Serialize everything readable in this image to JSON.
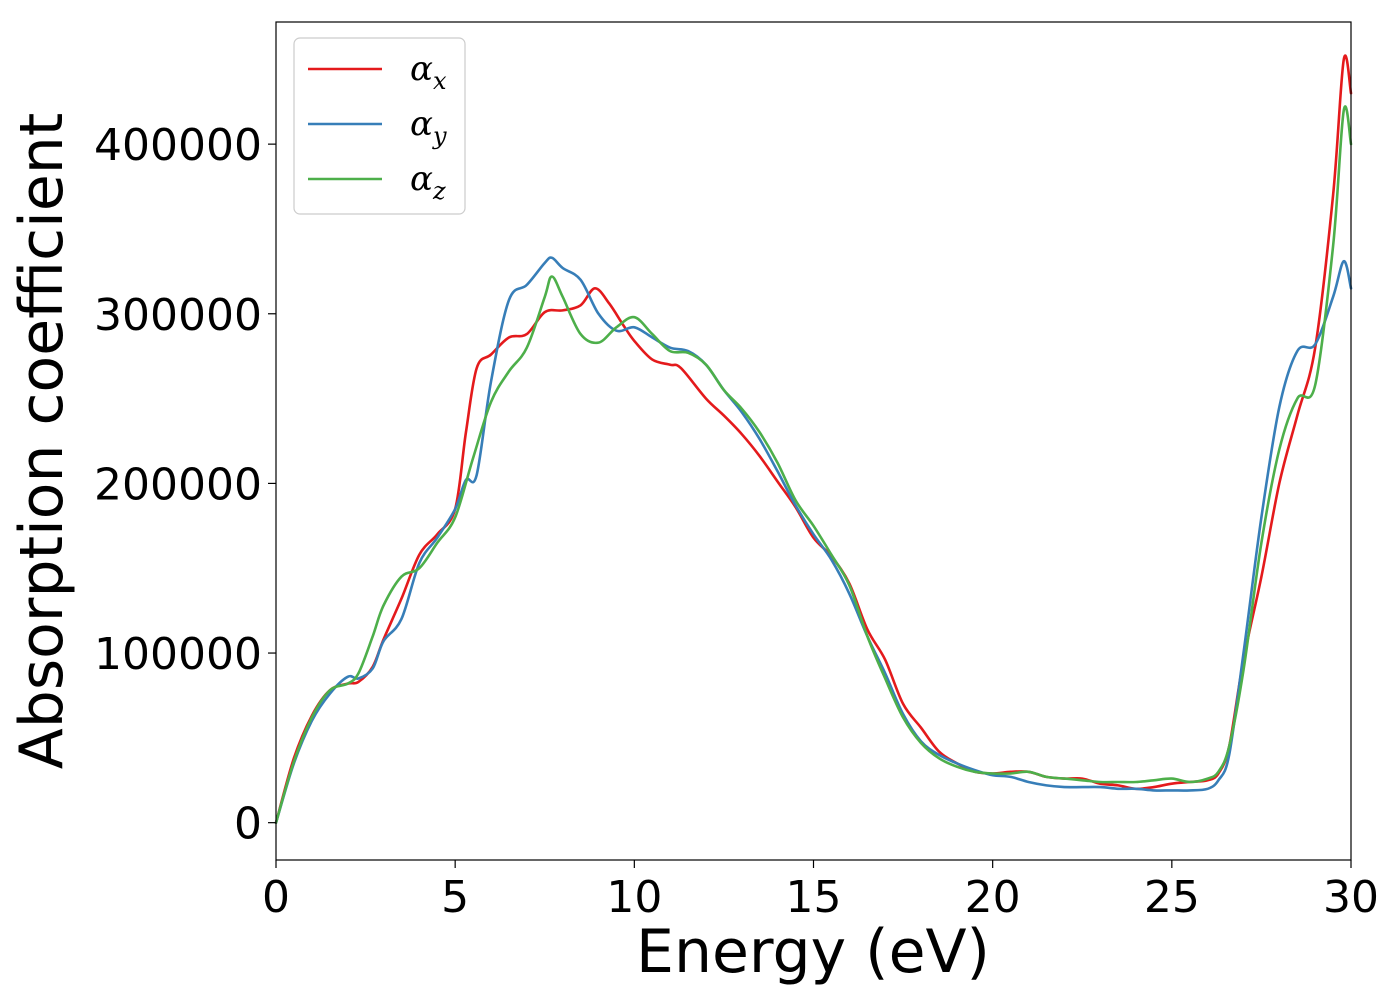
{
  "chart_data": {
    "type": "line",
    "xlabel": "Energy (eV)",
    "ylabel": "Absorption coefficient",
    "xlim": [
      0,
      30
    ],
    "ylim": [
      -22000,
      472000
    ],
    "xticks": [
      0,
      5,
      10,
      15,
      20,
      25,
      30
    ],
    "xtick_labels": [
      "0",
      "5",
      "10",
      "15",
      "20",
      "25",
      "30"
    ],
    "yticks": [
      0,
      100000,
      200000,
      300000,
      400000
    ],
    "ytick_labels": [
      "0",
      "100000",
      "200000",
      "300000",
      "400000"
    ],
    "grid": false,
    "legend_position": "top-left",
    "series": [
      {
        "name": "α",
        "subscript": "x",
        "color": "#e41a1c",
        "x": [
          0,
          0.5,
          1,
          1.5,
          2,
          2.3,
          2.7,
          3,
          3.5,
          4,
          4.5,
          5,
          5.3,
          5.6,
          6,
          6.5,
          7,
          7.5,
          8,
          8.5,
          8.9,
          9.3,
          9.7,
          10,
          10.5,
          11,
          11.3,
          12,
          12.5,
          13,
          13.5,
          14,
          14.5,
          15,
          15.5,
          16,
          16.5,
          17,
          17.5,
          18,
          18.5,
          19,
          19.5,
          20,
          20.5,
          21,
          21.5,
          22,
          22.5,
          23,
          23.5,
          24,
          24.5,
          25,
          25.5,
          26,
          26.3,
          26.6,
          27,
          27.5,
          28,
          28.5,
          29,
          29.5,
          29.8,
          30
        ],
        "y": [
          0,
          38000,
          63000,
          78000,
          82000,
          83000,
          92000,
          108000,
          132000,
          158000,
          170000,
          185000,
          230000,
          268000,
          276000,
          286000,
          288000,
          301000,
          302000,
          305000,
          315000,
          306000,
          293000,
          284000,
          273000,
          270000,
          268000,
          250000,
          240000,
          229000,
          216000,
          201000,
          186000,
          168000,
          157000,
          141000,
          114000,
          96000,
          70000,
          56000,
          42000,
          35000,
          30000,
          29000,
          30000,
          30000,
          27000,
          26000,
          26000,
          23000,
          22000,
          20000,
          21000,
          23000,
          24000,
          25000,
          29000,
          45000,
          96000,
          145000,
          200000,
          240000,
          280000,
          370000,
          450000,
          430000
        ]
      },
      {
        "name": "α",
        "subscript": "y",
        "color": "#377eb8",
        "x": [
          0,
          0.5,
          1,
          1.5,
          2,
          2.3,
          2.7,
          3,
          3.5,
          4,
          4.5,
          5,
          5.3,
          5.6,
          6,
          6.5,
          7,
          7.5,
          7.7,
          8,
          8.5,
          9,
          9.5,
          10,
          10.5,
          11,
          11.5,
          12,
          12.5,
          13,
          13.5,
          14,
          14.5,
          15,
          15.5,
          16,
          16.5,
          17,
          17.5,
          18,
          18.5,
          19,
          19.5,
          20,
          20.5,
          21,
          21.5,
          22,
          22.5,
          23,
          23.5,
          24,
          24.5,
          25,
          25.5,
          26,
          26.3,
          26.6,
          27,
          27.5,
          28,
          28.5,
          29,
          29.5,
          29.8,
          30
        ],
        "y": [
          0,
          35000,
          60000,
          76000,
          86000,
          85000,
          91000,
          107000,
          120000,
          153000,
          168000,
          185000,
          202000,
          205000,
          260000,
          308000,
          317000,
          330000,
          333000,
          327000,
          320000,
          300000,
          290000,
          292000,
          286000,
          280000,
          278000,
          270000,
          255000,
          242000,
          226000,
          207000,
          187000,
          170000,
          155000,
          135000,
          110000,
          88000,
          64000,
          48000,
          40000,
          35000,
          31000,
          28000,
          27000,
          24000,
          22000,
          21000,
          21000,
          21000,
          20000,
          20000,
          19000,
          19000,
          19000,
          20000,
          25000,
          40000,
          100000,
          180000,
          245000,
          278000,
          282000,
          310000,
          331000,
          315000
        ]
      },
      {
        "name": "α",
        "subscript": "z",
        "color": "#4daf4a",
        "x": [
          0,
          0.5,
          1,
          1.5,
          2,
          2.3,
          2.7,
          3,
          3.5,
          4,
          4.5,
          5,
          5.5,
          6,
          6.5,
          7,
          7.5,
          7.7,
          8,
          8.5,
          9,
          9.5,
          10,
          10.5,
          11,
          11.5,
          12,
          12.5,
          13,
          13.5,
          14,
          14.5,
          15,
          15.5,
          16,
          16.5,
          17,
          17.5,
          18,
          18.5,
          19,
          19.5,
          20,
          20.5,
          21,
          21.5,
          22,
          22.5,
          23,
          23.5,
          24,
          24.5,
          25,
          25.5,
          26,
          26.3,
          26.6,
          27,
          27.5,
          28,
          28.5,
          29,
          29.5,
          29.8,
          30
        ],
        "y": [
          0,
          36000,
          62000,
          78000,
          82000,
          88000,
          110000,
          128000,
          145000,
          150000,
          165000,
          180000,
          215000,
          248000,
          266000,
          280000,
          310000,
          322000,
          310000,
          288000,
          283000,
          292000,
          298000,
          288000,
          278000,
          277000,
          270000,
          255000,
          244000,
          230000,
          212000,
          190000,
          175000,
          158000,
          140000,
          110000,
          85000,
          62000,
          47000,
          38000,
          33000,
          30000,
          29000,
          29000,
          30000,
          27000,
          26000,
          25000,
          24000,
          24000,
          24000,
          25000,
          26000,
          24000,
          26000,
          30000,
          45000,
          90000,
          165000,
          220000,
          250000,
          258000,
          340000,
          420000,
          400000
        ]
      }
    ]
  }
}
